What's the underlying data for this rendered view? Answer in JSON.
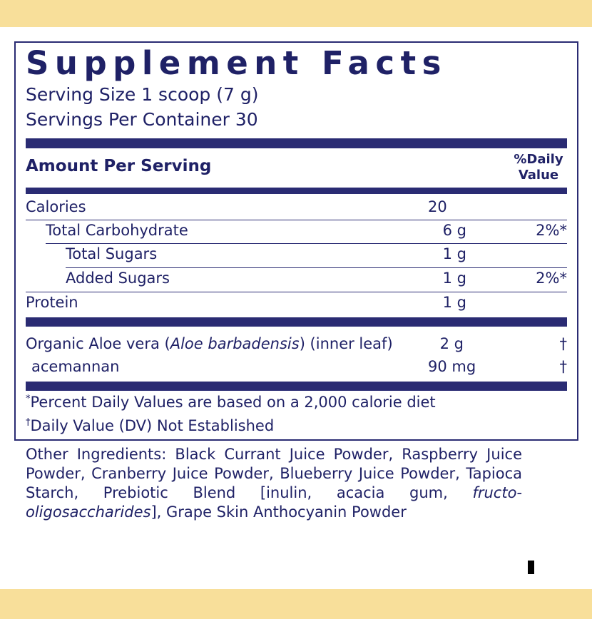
{
  "header": {
    "title": "Supplement Facts",
    "serving_size": "Serving Size 1 scoop (7 g)",
    "servings_per_container": "Servings Per Container 30"
  },
  "table": {
    "amount_header": "Amount Per Serving",
    "dv_header": [
      "%Daily",
      "Value"
    ],
    "rows": [
      {
        "name": "Calories",
        "amount": "20"
      },
      {
        "name": "Total Carbohydrate",
        "amount": "6 g",
        "dv": "2%*"
      },
      {
        "name": "Total Sugars",
        "amount": "1 g"
      },
      {
        "name": "Added Sugars",
        "amount": "1 g",
        "dv": "2%*"
      },
      {
        "name": "Protein",
        "amount": "1 g"
      }
    ],
    "botanicals": [
      {
        "name": [
          "Organic Aloe vera (",
          "Aloe barbadensis",
          ") (inner leaf)"
        ],
        "amount": "2 g",
        "dv": "†"
      },
      {
        "name": [
          "acemannan"
        ],
        "amount": "90 mg",
        "dv": "†"
      }
    ]
  },
  "footnotes": [
    {
      "symbol": "*",
      "text": "Percent Daily Values are based on a 2,000 calorie diet"
    },
    {
      "symbol": "†",
      "text": "Daily Value (DV) Not Established"
    }
  ],
  "other_ingredients": [
    "Other Ingredients: Black Currant Juice Powder, Raspberry Juice Powder, Cranberry Juice Powder, Blueberry Juice Powder, Tapioca Starch, Prebiotic Blend [inulin, acacia gum, ",
    "fructo-oligosaccharides",
    "], Grape Skin Anthocyanin Powder"
  ]
}
